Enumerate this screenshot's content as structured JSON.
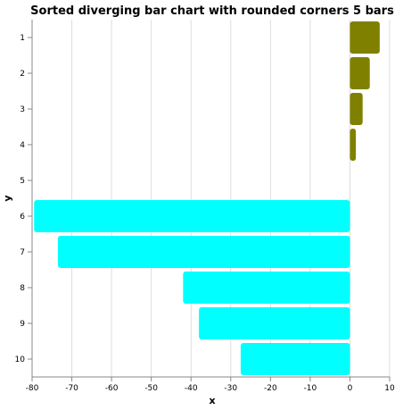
{
  "chart_data": {
    "type": "bar",
    "orientation": "horizontal",
    "title": "Sorted diverging bar chart with rounded corners 5 bars",
    "xlabel": "x",
    "ylabel": "y",
    "xlim": [
      -80,
      10
    ],
    "xticks": [
      -80,
      -70,
      -60,
      -50,
      -40,
      -30,
      -20,
      -10,
      0,
      10
    ],
    "categories": [
      "1",
      "2",
      "3",
      "4",
      "5",
      "6",
      "7",
      "8",
      "9",
      "10"
    ],
    "values": [
      7.5,
      5,
      3.2,
      1.5,
      null,
      -79.5,
      -73.5,
      -42,
      -38,
      -27.5
    ],
    "positive_color": "#808000",
    "negative_color": "#00ffff",
    "grid": true,
    "legend": "none"
  }
}
